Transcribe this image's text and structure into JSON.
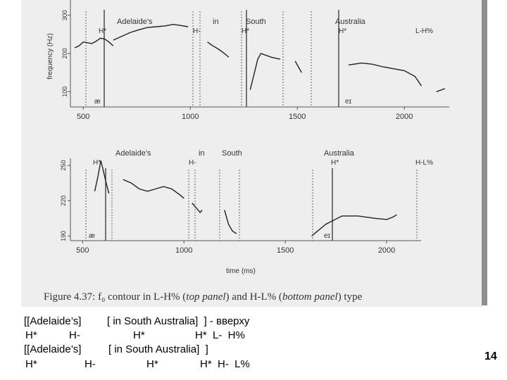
{
  "figure": {
    "caption": {
      "prefix": "Figure 4.37:",
      "f0": "f₀ contour in L-H% (",
      "top": "top panel",
      "mid": ") and H-L% (",
      "bottom": "bottom panel",
      "end": ") type"
    }
  },
  "chart_data": [
    {
      "type": "line",
      "panel": "top",
      "words": [
        "Adelaide's",
        "in",
        "South",
        "Australia"
      ],
      "tones": [
        "H*",
        "H-",
        "H*",
        "H*",
        "L-H%"
      ],
      "segments": [
        "æ",
        "eɪ"
      ],
      "ylabel": "frequency (Hz)",
      "yticks": [
        100,
        200,
        300
      ],
      "xticks": [
        500,
        1000,
        1500,
        2000
      ],
      "xlim": [
        440,
        2210
      ],
      "ylim": [
        60,
        340
      ],
      "series": [
        {
          "x": [
            460,
            480,
            500,
            520,
            540,
            560,
            580,
            600,
            620,
            640
          ],
          "y": [
            215,
            220,
            230,
            228,
            226,
            232,
            240,
            238,
            230,
            220
          ]
        },
        {
          "x": [
            640,
            680,
            720,
            760,
            800,
            840,
            880,
            920,
            960,
            990
          ],
          "y": [
            235,
            245,
            255,
            262,
            268,
            270,
            272,
            276,
            273,
            270
          ]
        },
        {
          "x": [
            1080,
            1100,
            1130,
            1160,
            1180
          ],
          "y": [
            230,
            222,
            212,
            200,
            190
          ]
        },
        {
          "x": [
            1280,
            1300,
            1315,
            1330,
            1350,
            1380,
            1420
          ],
          "y": [
            105,
            150,
            185,
            200,
            196,
            190,
            185
          ]
        },
        {
          "x": [
            1490,
            1505,
            1520
          ],
          "y": [
            180,
            165,
            150
          ]
        },
        {
          "x": [
            1740,
            1800,
            1850,
            1900,
            1950,
            2000,
            2050,
            2080
          ],
          "y": [
            170,
            175,
            172,
            165,
            160,
            155,
            140,
            115
          ]
        },
        {
          "x": [
            2150,
            2190
          ],
          "y": [
            100,
            108
          ]
        }
      ]
    },
    {
      "type": "line",
      "panel": "bottom",
      "words": [
        "Adelaide's",
        "in",
        "South",
        "Australia"
      ],
      "tones": [
        "H*",
        "H-",
        "H*",
        "H-L%"
      ],
      "segments": [
        "æ",
        "eɪ"
      ],
      "xlabel": "time (ms)",
      "yticks": [
        190,
        220,
        250
      ],
      "xticks": [
        500,
        1000,
        1500,
        2000
      ],
      "xlim": [
        440,
        2170
      ],
      "ylim": [
        186,
        256
      ],
      "series": [
        {
          "x": [
            560,
            575,
            590,
            600,
            615,
            630
          ],
          "y": [
            228,
            240,
            254,
            247,
            236,
            226
          ]
        },
        {
          "x": [
            700,
            740,
            780,
            820,
            860,
            900,
            940,
            980,
            1000
          ],
          "y": [
            238,
            235,
            230,
            228,
            230,
            232,
            230,
            225,
            222
          ]
        },
        {
          "x": [
            1040,
            1060,
            1080,
            1090
          ],
          "y": [
            218,
            214,
            210,
            212
          ]
        },
        {
          "x": [
            1200,
            1220,
            1240,
            1260
          ],
          "y": [
            212,
            200,
            194,
            192
          ]
        },
        {
          "x": [
            1630,
            1700,
            1780,
            1860,
            1940,
            2000,
            2030,
            2050
          ],
          "y": [
            190,
            200,
            207,
            207,
            205,
            204,
            206,
            208
          ]
        }
      ]
    }
  ],
  "text_lines": [
    {
      "items": [
        "[[Adelaide’s]",
        "[ in South Australia]  ] - вверху"
      ]
    },
    {
      "items": [
        "H*",
        "H-",
        "H*",
        "H*  L-  H%"
      ]
    },
    {
      "items": [
        "[[Adelaide’s]",
        "[ in South Australia]  ]"
      ]
    },
    {
      "items": [
        "H*",
        "H-",
        "H*",
        "H*  H-  L%"
      ]
    }
  ],
  "page_number": "14"
}
